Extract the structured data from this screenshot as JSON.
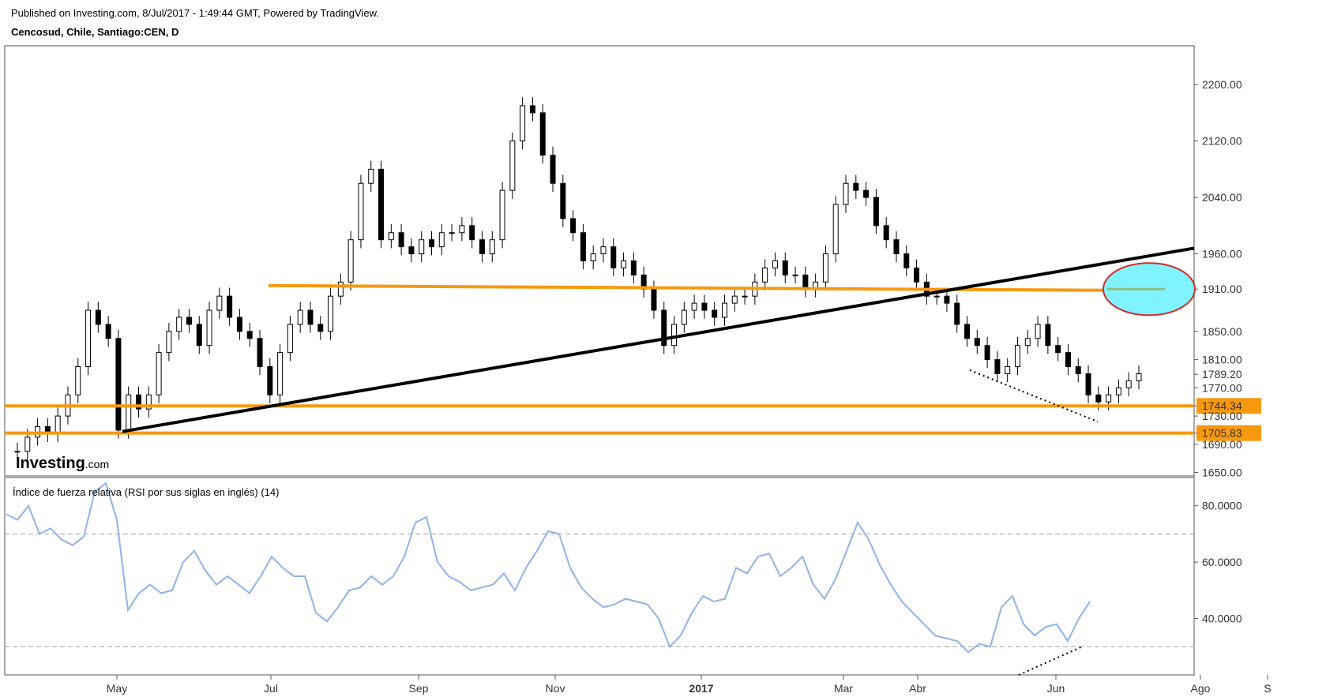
{
  "header": {
    "published": "Published on Investing.com, 8/Jul/2017 - 1:49:44 GMT, Powered by TradingView.",
    "symbol": "Cencosud, Chile, Santiago:CEN, D"
  },
  "logo": {
    "brand": "Investing",
    "suffix": ".com"
  },
  "colors": {
    "candle": "#000000",
    "support_line": "#f7990f",
    "trend_line": "#000000",
    "target_fill": "#7ff3ff",
    "target_border": "#d32a2a",
    "rsi_line": "#8fb3e8",
    "grid_dash": "#a0a0a0"
  },
  "chart_data": [
    {
      "type": "line",
      "title": "Cencosud, Chile, Santiago:CEN, D",
      "description_kind": "candlestick",
      "x_ticks": [
        "May",
        "Jul",
        "Sep",
        "Nov",
        "2017",
        "Mar",
        "Abr",
        "Jun",
        "Ago",
        "S"
      ],
      "y_ticks": [
        "2200.00",
        "2120.00",
        "2040.00",
        "1960.00",
        "1910.00",
        "1850.00",
        "1810.00",
        "1789.20",
        "1770.00",
        "1744.34",
        "1730.00",
        "1705.83",
        "1690.00",
        "1650.00"
      ],
      "ylim": [
        1645,
        2255
      ],
      "price_labels": [
        {
          "value": 1744.34,
          "text": "1744.34",
          "highlight": true
        },
        {
          "value": 1705.83,
          "text": "1705.83",
          "highlight": true
        },
        {
          "value": 1789.2,
          "text": "1789.20",
          "highlight": false
        }
      ],
      "horizontal_levels": [
        1744.34,
        1705.83,
        1910
      ],
      "close_series": [
        1680,
        1700,
        1715,
        1705,
        1730,
        1760,
        1800,
        1880,
        1860,
        1840,
        1710,
        1760,
        1740,
        1760,
        1820,
        1850,
        1870,
        1860,
        1830,
        1880,
        1900,
        1870,
        1850,
        1840,
        1800,
        1760,
        1820,
        1860,
        1880,
        1860,
        1850,
        1900,
        1920,
        1980,
        2060,
        2080,
        1980,
        1990,
        1970,
        1960,
        1980,
        1970,
        1990,
        1990,
        2000,
        1980,
        1960,
        1980,
        2050,
        2120,
        2170,
        2160,
        2100,
        2060,
        2010,
        1990,
        1950,
        1960,
        1970,
        1940,
        1950,
        1930,
        1910,
        1880,
        1830,
        1860,
        1880,
        1890,
        1880,
        1870,
        1890,
        1900,
        1900,
        1920,
        1940,
        1950,
        1930,
        1930,
        1910,
        1920,
        1960,
        2030,
        2060,
        2050,
        2040,
        2000,
        1980,
        1960,
        1940,
        1920,
        1900,
        1900,
        1890,
        1860,
        1840,
        1830,
        1810,
        1790,
        1800,
        1830,
        1840,
        1860,
        1830,
        1820,
        1800,
        1790,
        1760,
        1750,
        1760,
        1770,
        1780,
        1790
      ],
      "series_length_note": ""
    },
    {
      "type": "line",
      "title": "Índice de fuerza relativa (RSI por sus siglas en inglés) (14)",
      "y_ticks": [
        "80.0000",
        "60.0000",
        "40.0000"
      ],
      "ylim": [
        20,
        90
      ],
      "reference_lines": [
        70,
        30
      ],
      "series": [
        {
          "name": "",
          "values": [
            77,
            75,
            80,
            70,
            72,
            68,
            66,
            69,
            85,
            88,
            75,
            43,
            49,
            52,
            49,
            50,
            60,
            64,
            57,
            52,
            55,
            52,
            49,
            55,
            62,
            58,
            55,
            55,
            42,
            39,
            44,
            50,
            51,
            55,
            52,
            55,
            62,
            74,
            76,
            60,
            55,
            53,
            50,
            51,
            52,
            56,
            50,
            58,
            64,
            71,
            70,
            58,
            51,
            47,
            44,
            45,
            47,
            46,
            45,
            40,
            30,
            34,
            42,
            48,
            46,
            47,
            58,
            56,
            62,
            63,
            55,
            58,
            62,
            52,
            47,
            54,
            64,
            74,
            68,
            59,
            52,
            46,
            42,
            38,
            34,
            33,
            32,
            28,
            31,
            30,
            44,
            48,
            38,
            34,
            37,
            38,
            32,
            40,
            46
          ]
        }
      ]
    }
  ]
}
